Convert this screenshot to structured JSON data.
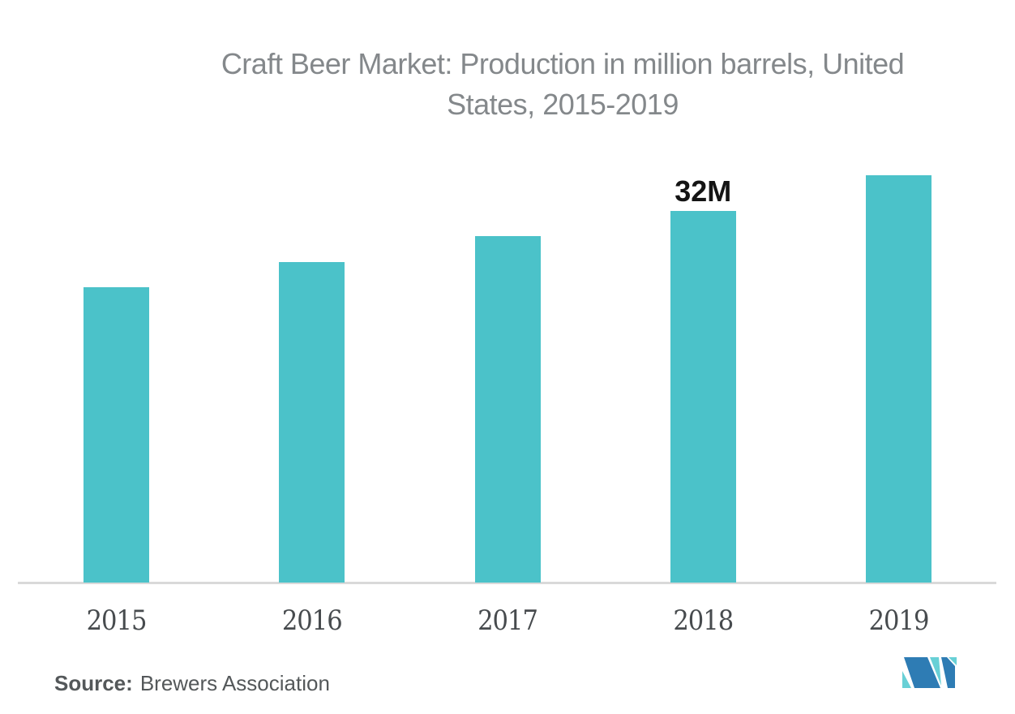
{
  "title": {
    "full": "Craft Beer Market: Production in million barrels, United States, 2015-2019",
    "lines": [
      "Craft Beer Market: Production in million barrels, United",
      "States, 2015-2019"
    ]
  },
  "chart_data": {
    "type": "bar",
    "title": "Craft Beer Market: Production in million barrels, United States, 2015-2019",
    "categories": [
      "2015",
      "2016",
      "2017",
      "2018",
      "2019"
    ],
    "values": [
      25.4,
      27.6,
      29.8,
      32,
      35.1
    ],
    "value_labels": [
      "",
      "",
      "",
      "32M",
      ""
    ],
    "unit": "million barrels",
    "xlabel": "",
    "ylabel": "",
    "ylim": [
      0,
      36
    ],
    "grid": false,
    "y_axis_shown": false,
    "legend": "none",
    "bar_color": "#4BC2C9"
  },
  "source": {
    "prefix": "Source:",
    "text": "Brewers Association"
  },
  "branding": {
    "logo_name": "mordor-intelligence-logo",
    "logo_blue": "#2E7CB4",
    "logo_teal": "#68D0D6"
  },
  "colors": {
    "background": "#FFFFFF",
    "bar": "#4BC2C9",
    "title_text": "#84888B",
    "axis_tick_text": "#474B4E",
    "data_label_text": "#141414",
    "axis_line": "#D9D9D9",
    "source_text": "#54585A"
  }
}
